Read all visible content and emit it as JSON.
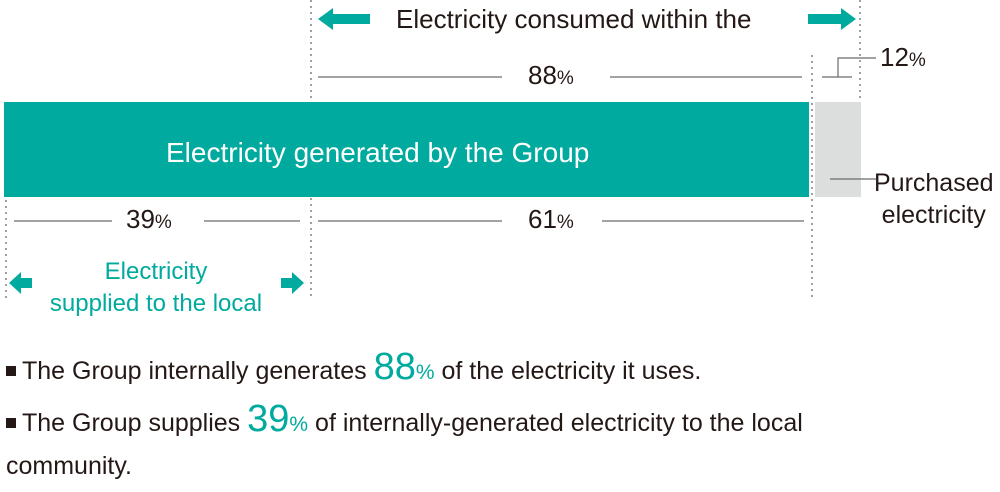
{
  "colors": {
    "teal": "#00aa9e",
    "gray": "#dcdddd",
    "text": "#231815",
    "line": "#6b6b6b"
  },
  "top_label": "Electricity consumed within the",
  "consumed": {
    "value": "88",
    "unit": "%"
  },
  "purchased_share": {
    "value": "12",
    "unit": "%"
  },
  "bar_label": "Electricity generated by the Group",
  "purchased_label": [
    "Purchased",
    "electricity"
  ],
  "local_share": {
    "value": "39",
    "unit": "%"
  },
  "internal_share": {
    "value": "61",
    "unit": "%"
  },
  "local_label": [
    "Electricity",
    "supplied to the local"
  ],
  "bullets": [
    {
      "before": "The Group internally generates ",
      "value": "88",
      "unit": "%",
      "after": " of the electricity it uses."
    },
    {
      "before": "The Group supplies ",
      "value": "39",
      "unit": "%",
      "after": " of internally-generated electricity to the local",
      "continuation": "community."
    }
  ]
}
